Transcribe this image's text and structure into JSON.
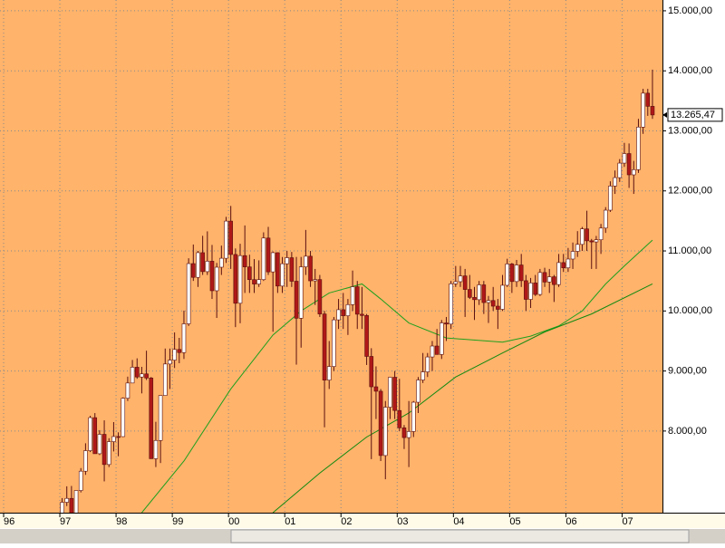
{
  "chart_data": {
    "type": "candlestick",
    "categories": [
      "96",
      null,
      null,
      null,
      null,
      null,
      null,
      null,
      null,
      null,
      null,
      null,
      "97",
      null,
      null,
      null,
      null,
      null,
      null,
      null,
      null,
      null,
      null,
      null,
      "98",
      null,
      null,
      null,
      null,
      null,
      null,
      null,
      null,
      null,
      null,
      null,
      "99",
      null,
      null,
      null,
      null,
      null,
      null,
      null,
      null,
      null,
      null,
      null,
      "00",
      null,
      null,
      null,
      null,
      null,
      null,
      null,
      null,
      null,
      null,
      null,
      "01",
      null,
      null,
      null,
      null,
      null,
      null,
      null,
      null,
      null,
      null,
      null,
      "02",
      null,
      null,
      null,
      null,
      null,
      null,
      null,
      null,
      null,
      null,
      null,
      "03",
      null,
      null,
      null,
      null,
      null,
      null,
      null,
      null,
      null,
      null,
      null,
      "04",
      null,
      null,
      null,
      null,
      null,
      null,
      null,
      null,
      null,
      null,
      null,
      "05",
      null,
      null,
      null,
      null,
      null,
      null,
      null,
      null,
      null,
      null,
      null,
      "06",
      null,
      null,
      null,
      null,
      null,
      null,
      null,
      null,
      null,
      null,
      null,
      "07",
      null,
      null,
      null,
      null,
      null,
      null
    ],
    "open": [
      null,
      null,
      null,
      null,
      null,
      null,
      null,
      null,
      null,
      null,
      null,
      null,
      6448,
      6813,
      6878,
      6584,
      7009,
      7331,
      7673,
      8223,
      7622,
      7945,
      7442,
      7823,
      7908,
      7907,
      8546,
      8800,
      9063,
      8900,
      8952,
      8883,
      7539,
      7843,
      8592,
      9117,
      9181,
      9359,
      9307,
      9786,
      10789,
      10560,
      10971,
      10655,
      10829,
      10337,
      10729,
      10878,
      11497,
      10941,
      10128,
      10922,
      10734,
      10522,
      10448,
      10522,
      11215,
      10651,
      10971,
      10415,
      10787,
      10887,
      10495,
      9879,
      10735,
      10912,
      10502,
      10523,
      9950,
      8848,
      9075,
      9852,
      10021,
      9920,
      10106,
      10404,
      9946,
      9925,
      9243,
      8737,
      8663,
      7592,
      8397,
      8896,
      8342,
      8054,
      7891,
      7992,
      8480,
      8850,
      8985,
      9234,
      9416,
      9275,
      9801,
      9782,
      10453,
      10488,
      10584,
      10358,
      10226,
      10188,
      10435,
      10140,
      10174,
      10080,
      10027,
      10428,
      10783,
      10490,
      10766,
      10504,
      10193,
      10467,
      10275,
      10641,
      10482,
      10569,
      10440,
      10806,
      10718,
      10865,
      10993,
      11109,
      11367,
      11168,
      11150,
      11186,
      11381,
      11679,
      12081,
      12221,
      12463,
      12622,
      12268,
      12354,
      13063,
      13628,
      13409
    ],
    "high": [
      null,
      null,
      null,
      null,
      null,
      null,
      null,
      null,
      null,
      null,
      null,
      null,
      6883,
      7079,
      7085,
      7009,
      7383,
      7796,
      8254,
      8299,
      8015,
      8178,
      7881,
      8149,
      7978,
      8560,
      8906,
      9184,
      9211,
      9069,
      9338,
      8900,
      8154,
      8592,
      9374,
      9374,
      9643,
      9552,
      10006,
      10878,
      11107,
      11000,
      11252,
      11326,
      11100,
      10800,
      11089,
      11568,
      11750,
      11041,
      11119,
      11425,
      10937,
      10864,
      10843,
      11310,
      11401,
      10990,
      10977,
      10899,
      11000,
      10983,
      10900,
      10900,
      11350,
      11000,
      10700,
      10600,
      10000,
      9500,
      9900,
      10200,
      10300,
      10200,
      10673,
      10500,
      10400,
      9950,
      9380,
      9077,
      8700,
      8500,
      8900,
      9000,
      8870,
      8100,
      8500,
      8500,
      8900,
      9300,
      9300,
      9500,
      9700,
      9850,
      9900,
      10500,
      10750,
      10750,
      10700,
      10600,
      10400,
      10500,
      10500,
      10250,
      10400,
      10200,
      10600,
      10870,
      10800,
      10850,
      10950,
      10600,
      10550,
      10600,
      10700,
      10720,
      10700,
      10600,
      10950,
      10950,
      11050,
      11140,
      11330,
      11400,
      11670,
      11200,
      11250,
      11450,
      11730,
      12160,
      12340,
      12530,
      12800,
      12790,
      12500,
      13200,
      13700,
      13700,
      14020
    ],
    "low": [
      null,
      null,
      null,
      null,
      null,
      null,
      null,
      null,
      null,
      null,
      null,
      null,
      6442,
      6750,
      6583,
      6391,
      6977,
      7270,
      7650,
      7622,
      7600,
      7161,
      7400,
      7660,
      7580,
      7900,
      8500,
      8800,
      8870,
      8627,
      8850,
      7539,
      7400,
      7467,
      8592,
      8700,
      9050,
      9130,
      9200,
      9750,
      10500,
      10400,
      10600,
      10600,
      10200,
      9884,
      10600,
      10800,
      10700,
      9731,
      9796,
      10300,
      10300,
      10300,
      10400,
      10500,
      10600,
      9654,
      10300,
      10300,
      10400,
      10400,
      9106,
      9389,
      10600,
      10400,
      10100,
      9900,
      8062,
      8700,
      9000,
      9700,
      9700,
      9600,
      10000,
      9700,
      9700,
      9100,
      7532,
      8200,
      7500,
      7197,
      8200,
      8200,
      8000,
      7700,
      7400,
      7900,
      8300,
      8800,
      8900,
      9000,
      9300,
      9200,
      9500,
      9700,
      10400,
      10400,
      9900,
      10200,
      9850,
      10100,
      9950,
      9800,
      10000,
      9700,
      10000,
      10400,
      10300,
      10400,
      10400,
      10000,
      10050,
      10250,
      10250,
      10400,
      10300,
      10150,
      10400,
      10650,
      10650,
      10700,
      10900,
      11000,
      11000,
      10700,
      10700,
      10950,
      11300,
      11650,
      11950,
      12150,
      12400,
      12050,
      11950,
      12300,
      12950,
      13250,
      13200
    ],
    "close": [
      null,
      null,
      null,
      null,
      null,
      null,
      null,
      null,
      null,
      null,
      null,
      null,
      6813,
      6878,
      6584,
      7009,
      7331,
      7673,
      8223,
      7622,
      7945,
      7442,
      7823,
      7908,
      7907,
      8546,
      8800,
      9063,
      8900,
      8952,
      8883,
      7539,
      7843,
      8592,
      9117,
      9181,
      9359,
      9307,
      9786,
      10789,
      10560,
      10971,
      10655,
      10829,
      10337,
      10729,
      10878,
      11497,
      10941,
      10128,
      10922,
      10734,
      10522,
      10448,
      10522,
      11215,
      10651,
      10971,
      10415,
      10787,
      10887,
      10495,
      9879,
      10735,
      10912,
      10502,
      10523,
      9950,
      8848,
      9075,
      9852,
      10021,
      9920,
      10106,
      10404,
      9946,
      9925,
      9243,
      8737,
      8663,
      7592,
      8397,
      8896,
      8342,
      8054,
      7891,
      7992,
      8480,
      8850,
      8985,
      9234,
      9416,
      9275,
      9801,
      9782,
      10453,
      10488,
      10584,
      10358,
      10226,
      10188,
      10435,
      10140,
      10174,
      10080,
      10027,
      10428,
      10783,
      10490,
      10766,
      10504,
      10193,
      10467,
      10275,
      10641,
      10482,
      10569,
      10440,
      10806,
      10718,
      10865,
      10993,
      11109,
      11367,
      11168,
      11150,
      11186,
      11381,
      11679,
      12081,
      12221,
      12463,
      12622,
      12268,
      12354,
      13063,
      13628,
      13409,
      13265.47
    ],
    "up_color": "#ffffff",
    "down_color": "#b01818",
    "wick_color": "#5a1010",
    "lines": [
      {
        "color": "#1ea01e",
        "x": [
          29,
          38,
          48,
          57,
          63,
          69,
          76,
          80,
          86,
          94,
          106,
          112,
          118,
          123,
          128,
          132,
          138
        ],
        "values": [
          6640,
          7500,
          8700,
          9600,
          10000,
          10300,
          10450,
          10200,
          9800,
          9550,
          9480,
          9580,
          9750,
          10000,
          10450,
          10750,
          11180
        ]
      },
      {
        "color": "#108a10",
        "x": [
          57,
          67,
          77,
          86,
          96,
          106,
          115,
          125,
          138
        ],
        "values": [
          6640,
          7300,
          7900,
          8300,
          8900,
          9300,
          9650,
          9950,
          10450
        ]
      }
    ],
    "close_label": {
      "value": 13265.47,
      "label": "13.265,47"
    },
    "ylim": [
      6640,
      15180
    ],
    "yticks": [
      {
        "value": 8000,
        "label": "8.000,00"
      },
      {
        "value": 9000,
        "label": "9.000,00"
      },
      {
        "value": 10000,
        "label": "10.000,00"
      },
      {
        "value": 11000,
        "label": "11.000,00"
      },
      {
        "value": 12000,
        "label": "12.000,00"
      },
      {
        "value": 13000,
        "label": "13.000,00"
      },
      {
        "value": 14000,
        "label": "14.000,00"
      },
      {
        "value": 15000,
        "label": "15.000,00"
      }
    ],
    "grid": true,
    "background": "#ffb36b"
  }
}
